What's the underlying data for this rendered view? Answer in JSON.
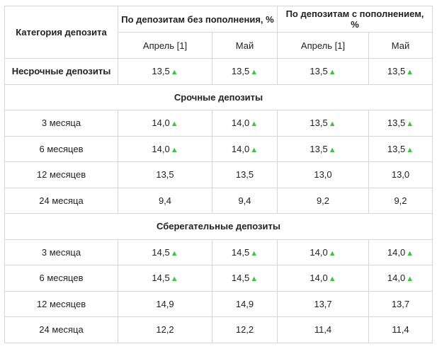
{
  "header": {
    "category_label": "Категория депозита",
    "group_no_topup": "По депозитам без пополнения, %",
    "group_topup": "По депозитам с пополнением, %",
    "april_label": "Апрель  [1]",
    "may_label": "Май"
  },
  "indicator": {
    "up_symbol": "▲",
    "up_color": "#3ec43e",
    "icon": "up-triangle-icon"
  },
  "rows": [
    {
      "kind": "data",
      "label": "Несрочные депозиты",
      "strong": true,
      "values": [
        {
          "v": "13,5",
          "up": true
        },
        {
          "v": "13,5",
          "up": true
        },
        {
          "v": "13,5",
          "up": true
        },
        {
          "v": "13,5",
          "up": true
        }
      ]
    },
    {
      "kind": "section",
      "label": "Срочные депозиты"
    },
    {
      "kind": "data",
      "label": "3 месяца",
      "values": [
        {
          "v": "14,0",
          "up": true
        },
        {
          "v": "14,0",
          "up": true
        },
        {
          "v": "13,5",
          "up": true
        },
        {
          "v": "13,5",
          "up": true
        }
      ]
    },
    {
      "kind": "data",
      "label": "6 месяцев",
      "values": [
        {
          "v": "14,0",
          "up": true
        },
        {
          "v": "14,0",
          "up": true
        },
        {
          "v": "13,5",
          "up": true
        },
        {
          "v": "13,5",
          "up": true
        }
      ]
    },
    {
      "kind": "data",
      "label": "12 месяцев",
      "values": [
        {
          "v": "13,5",
          "up": false
        },
        {
          "v": "13,5",
          "up": false
        },
        {
          "v": "13,0",
          "up": false
        },
        {
          "v": "13,0",
          "up": false
        }
      ]
    },
    {
      "kind": "data",
      "label": "24 месяца",
      "values": [
        {
          "v": "9,4",
          "up": false
        },
        {
          "v": "9,4",
          "up": false
        },
        {
          "v": "9,2",
          "up": false
        },
        {
          "v": "9,2",
          "up": false
        }
      ]
    },
    {
      "kind": "section",
      "label": "Сберегательные депозиты"
    },
    {
      "kind": "data",
      "label": "3 месяца",
      "values": [
        {
          "v": "14,5",
          "up": true
        },
        {
          "v": "14,5",
          "up": true
        },
        {
          "v": "14,0",
          "up": true
        },
        {
          "v": "14,0",
          "up": true
        }
      ]
    },
    {
      "kind": "data",
      "label": "6 месяцев",
      "values": [
        {
          "v": "14,5",
          "up": true
        },
        {
          "v": "14,5",
          "up": true
        },
        {
          "v": "14,0",
          "up": true
        },
        {
          "v": "14,0",
          "up": true
        }
      ]
    },
    {
      "kind": "data",
      "label": "12 месяцев",
      "values": [
        {
          "v": "14,9",
          "up": false
        },
        {
          "v": "14,9",
          "up": false
        },
        {
          "v": "13,7",
          "up": false
        },
        {
          "v": "13,7",
          "up": false
        }
      ]
    },
    {
      "kind": "data",
      "label": "24 месяца",
      "values": [
        {
          "v": "12,2",
          "up": false
        },
        {
          "v": "12,2",
          "up": false
        },
        {
          "v": "11,4",
          "up": false
        },
        {
          "v": "11,4",
          "up": false
        }
      ]
    }
  ]
}
